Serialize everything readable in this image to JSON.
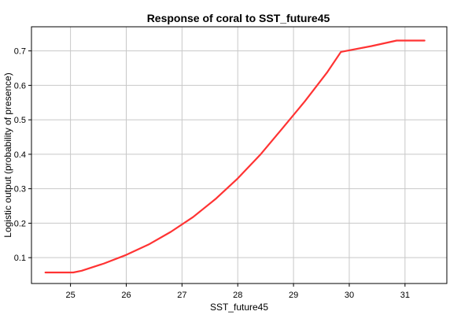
{
  "chart_data": {
    "type": "line",
    "title": "Response of coral to SST_future45",
    "xlabel": "SST_future45",
    "ylabel": "Logistic output (probability of presence)",
    "xlim": [
      24.3,
      31.75
    ],
    "ylim": [
      0.025,
      0.77
    ],
    "xticks": [
      25,
      26,
      27,
      28,
      29,
      30,
      31
    ],
    "yticks": [
      0.1,
      0.2,
      0.3,
      0.4,
      0.5,
      0.6,
      0.7
    ],
    "grid": true,
    "series": [
      {
        "color": "#ff3333",
        "x": [
          24.55,
          25.05,
          25.2,
          25.6,
          26.0,
          26.4,
          26.8,
          27.2,
          27.6,
          28.0,
          28.4,
          28.8,
          29.2,
          29.6,
          29.85,
          30.4,
          30.85,
          31.35
        ],
        "y": [
          0.057,
          0.057,
          0.062,
          0.083,
          0.108,
          0.138,
          0.175,
          0.218,
          0.27,
          0.33,
          0.398,
          0.475,
          0.553,
          0.637,
          0.697,
          0.714,
          0.73,
          0.73
        ]
      }
    ]
  }
}
